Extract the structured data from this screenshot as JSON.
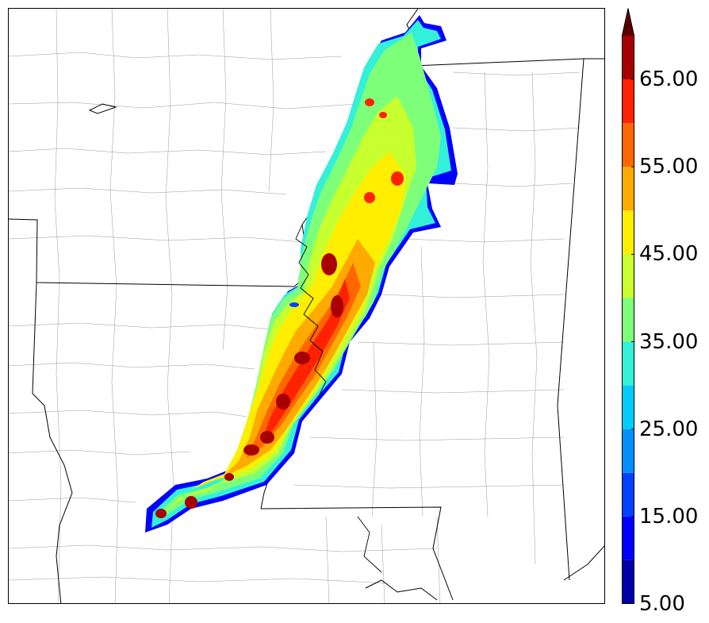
{
  "map": {
    "field": "radar-reflectivity",
    "background": "#ffffff",
    "state_line_color": "#000000",
    "county_line_color": "#8c8c8c"
  },
  "colorbar": {
    "extend": "max",
    "levels": [
      5,
      10,
      15,
      20,
      25,
      30,
      35,
      40,
      45,
      50,
      55,
      60,
      65,
      70
    ],
    "colors": [
      "#0000aa",
      "#0000ff",
      "#0040ff",
      "#0090ff",
      "#00ccff",
      "#33f0d8",
      "#7dff7a",
      "#c8ff2e",
      "#ffee00",
      "#ffaa00",
      "#ff6600",
      "#ff2200",
      "#a80000"
    ],
    "extend_color": "#5a0000",
    "tick_labels": [
      {
        "text": "5.00",
        "value": 5
      },
      {
        "text": "15.00",
        "value": 15
      },
      {
        "text": "25.00",
        "value": 25
      },
      {
        "text": "35.00",
        "value": 35
      },
      {
        "text": "45.00",
        "value": 45
      },
      {
        "text": "55.00",
        "value": 55
      },
      {
        "text": "65.00",
        "value": 65
      }
    ]
  }
}
